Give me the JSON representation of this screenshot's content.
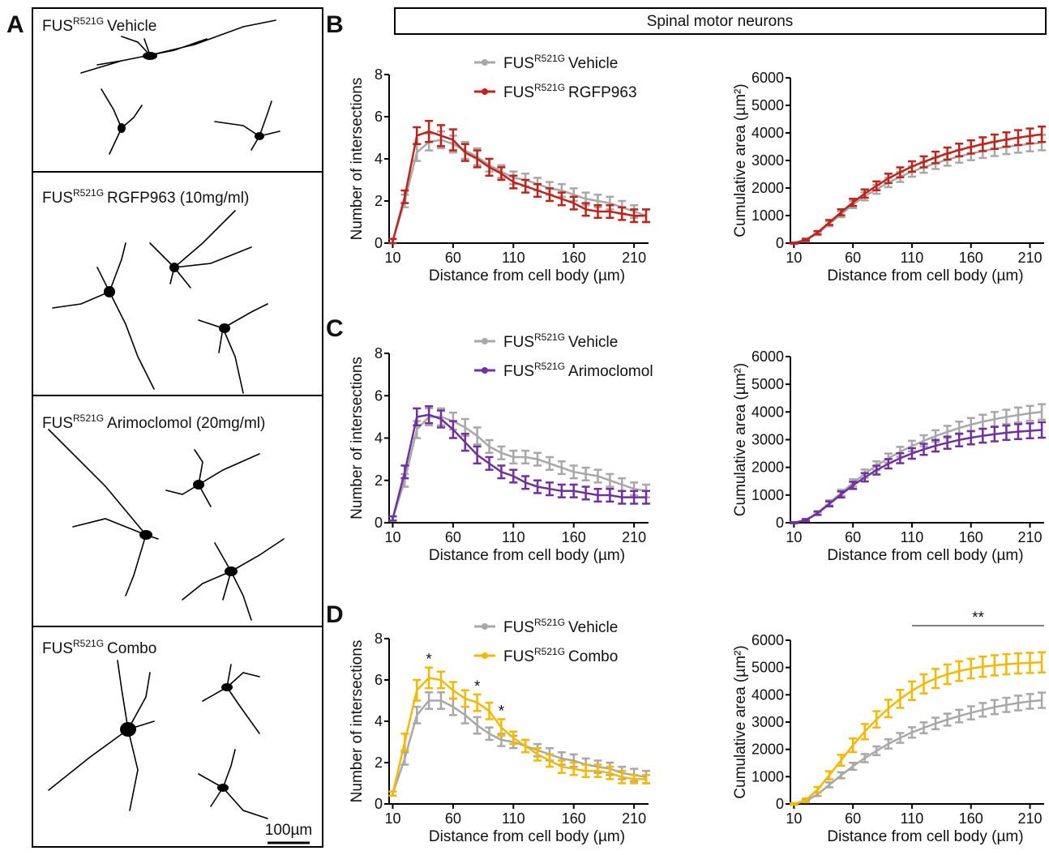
{
  "panel_labels": [
    "A",
    "B",
    "C",
    "D"
  ],
  "header": "Spinal motor neurons",
  "panel_a": {
    "images": [
      {
        "gene": "FUS",
        "allele": "R521G",
        "treatment": "Vehicle"
      },
      {
        "gene": "FUS",
        "allele": "R521G",
        "treatment": "RGFP963 (10mg/ml)"
      },
      {
        "gene": "FUS",
        "allele": "R521G",
        "treatment": "Arimoclomol (20mg/ml)"
      },
      {
        "gene": "FUS",
        "allele": "R521G",
        "treatment": "Combo"
      }
    ],
    "scale_bar": "100µm"
  },
  "chart_data": [
    {
      "type": "line",
      "xlabel": "Distance from cell body (µm)",
      "ylabel": "Number of intersections",
      "x": [
        10,
        20,
        30,
        40,
        50,
        60,
        70,
        80,
        90,
        100,
        110,
        120,
        130,
        140,
        150,
        160,
        170,
        180,
        190,
        200,
        210,
        220
      ],
      "xlim": [
        7,
        222
      ],
      "xticks": [
        10,
        60,
        110,
        160,
        210
      ],
      "ylim": [
        0,
        8
      ],
      "yticks": [
        0,
        2,
        4,
        6,
        8
      ],
      "legend": true,
      "series": [
        {
          "gene": "FUS",
          "allele": "R521G",
          "name": "Vehicle",
          "color": "#a8a8a8",
          "values": [
            0.1,
            2.0,
            4.3,
            4.8,
            4.9,
            4.7,
            4.4,
            4.1,
            3.7,
            3.4,
            3.1,
            3.0,
            2.8,
            2.6,
            2.5,
            2.3,
            2.1,
            2.0,
            1.9,
            1.7,
            1.5,
            1.3
          ],
          "errors": [
            0.1,
            0.3,
            0.4,
            0.4,
            0.4,
            0.4,
            0.4,
            0.4,
            0.3,
            0.3,
            0.3,
            0.3,
            0.3,
            0.3,
            0.3,
            0.3,
            0.3,
            0.3,
            0.3,
            0.3,
            0.3,
            0.3
          ]
        },
        {
          "gene": "FUS",
          "allele": "R521G",
          "name": "RGFP963",
          "color": "#c0231b",
          "values": [
            0.1,
            2.2,
            5.1,
            5.3,
            5.1,
            4.9,
            4.3,
            4.0,
            3.6,
            3.3,
            2.9,
            2.7,
            2.5,
            2.3,
            2.1,
            1.9,
            1.6,
            1.5,
            1.5,
            1.4,
            1.3,
            1.3
          ],
          "errors": [
            0.1,
            0.3,
            0.4,
            0.5,
            0.5,
            0.5,
            0.4,
            0.4,
            0.4,
            0.3,
            0.3,
            0.3,
            0.3,
            0.3,
            0.3,
            0.3,
            0.3,
            0.3,
            0.3,
            0.3,
            0.3,
            0.3
          ]
        }
      ]
    },
    {
      "type": "line",
      "xlabel": "Distance from cell body (µm)",
      "ylabel": "Cumulative area (µm²)",
      "x": [
        10,
        20,
        30,
        40,
        50,
        60,
        70,
        80,
        90,
        100,
        110,
        120,
        130,
        140,
        150,
        160,
        170,
        180,
        190,
        200,
        210,
        220
      ],
      "xlim": [
        7,
        222
      ],
      "xticks": [
        10,
        60,
        110,
        160,
        210
      ],
      "ylim": [
        0,
        6000
      ],
      "yticks": [
        0,
        1000,
        2000,
        3000,
        4000,
        5000,
        6000
      ],
      "legend": false,
      "series": [
        {
          "name": "Vehicle",
          "color": "#a8a8a8",
          "values": [
            0,
            100,
            350,
            700,
            1050,
            1400,
            1700,
            1950,
            2200,
            2400,
            2600,
            2750,
            2900,
            3030,
            3150,
            3250,
            3340,
            3420,
            3490,
            3550,
            3600,
            3650
          ],
          "errors": [
            20,
            40,
            60,
            90,
            110,
            130,
            150,
            160,
            170,
            180,
            190,
            200,
            210,
            220,
            230,
            240,
            250,
            260,
            260,
            270,
            270,
            280
          ]
        },
        {
          "name": "RGFP963",
          "color": "#c0231b",
          "values": [
            0,
            120,
            380,
            750,
            1120,
            1480,
            1800,
            2080,
            2350,
            2570,
            2780,
            2950,
            3110,
            3250,
            3380,
            3490,
            3590,
            3680,
            3760,
            3830,
            3890,
            3950
          ],
          "errors": [
            20,
            40,
            60,
            90,
            110,
            130,
            150,
            160,
            170,
            180,
            190,
            200,
            210,
            220,
            230,
            240,
            250,
            260,
            260,
            270,
            270,
            280
          ]
        }
      ]
    },
    {
      "type": "line",
      "xlabel": "Distance from cell body (µm)",
      "ylabel": "Number of intersections",
      "x": [
        10,
        20,
        30,
        40,
        50,
        60,
        70,
        80,
        90,
        100,
        110,
        120,
        130,
        140,
        150,
        160,
        170,
        180,
        190,
        200,
        210,
        220
      ],
      "xlim": [
        7,
        222
      ],
      "xticks": [
        10,
        60,
        110,
        160,
        210
      ],
      "ylim": [
        0,
        8
      ],
      "yticks": [
        0,
        2,
        4,
        6,
        8
      ],
      "legend": true,
      "series": [
        {
          "gene": "FUS",
          "allele": "R521G",
          "name": "Vehicle",
          "color": "#a8a8a8",
          "values": [
            0.2,
            2.0,
            4.4,
            5.0,
            5.0,
            4.8,
            4.5,
            4.1,
            3.6,
            3.3,
            3.1,
            3.1,
            3.0,
            2.8,
            2.6,
            2.4,
            2.3,
            2.2,
            2.0,
            1.8,
            1.6,
            1.5
          ],
          "errors": [
            0.1,
            0.3,
            0.4,
            0.4,
            0.4,
            0.4,
            0.4,
            0.4,
            0.3,
            0.3,
            0.3,
            0.3,
            0.3,
            0.3,
            0.3,
            0.3,
            0.3,
            0.3,
            0.3,
            0.3,
            0.3,
            0.3
          ]
        },
        {
          "gene": "FUS",
          "allele": "R521G",
          "name": "Arimoclomol",
          "color": "#7030a0",
          "values": [
            0.2,
            2.4,
            5.0,
            5.1,
            4.9,
            4.4,
            3.8,
            3.2,
            2.8,
            2.4,
            2.2,
            1.9,
            1.7,
            1.6,
            1.5,
            1.5,
            1.4,
            1.3,
            1.3,
            1.2,
            1.2,
            1.2
          ],
          "errors": [
            0.1,
            0.3,
            0.4,
            0.4,
            0.4,
            0.4,
            0.4,
            0.4,
            0.3,
            0.3,
            0.3,
            0.3,
            0.3,
            0.3,
            0.3,
            0.3,
            0.3,
            0.3,
            0.3,
            0.3,
            0.3,
            0.3
          ]
        }
      ]
    },
    {
      "type": "line",
      "xlabel": "Distance from cell body (µm)",
      "ylabel": "Cumulative area (µm²)",
      "x": [
        10,
        20,
        30,
        40,
        50,
        60,
        70,
        80,
        90,
        100,
        110,
        120,
        130,
        140,
        150,
        160,
        170,
        180,
        190,
        200,
        210,
        220
      ],
      "xlim": [
        7,
        222
      ],
      "xticks": [
        10,
        60,
        110,
        160,
        210
      ],
      "ylim": [
        0,
        6000
      ],
      "yticks": [
        0,
        1000,
        2000,
        3000,
        4000,
        5000,
        6000
      ],
      "legend": false,
      "series": [
        {
          "name": "Vehicle",
          "color": "#a8a8a8",
          "values": [
            0,
            100,
            360,
            720,
            1080,
            1440,
            1770,
            2060,
            2330,
            2560,
            2770,
            2960,
            3130,
            3280,
            3420,
            3540,
            3650,
            3740,
            3820,
            3890,
            3950,
            4000
          ],
          "errors": [
            20,
            40,
            60,
            90,
            110,
            130,
            150,
            160,
            170,
            180,
            190,
            200,
            210,
            220,
            230,
            240,
            250,
            260,
            260,
            270,
            270,
            280
          ]
        },
        {
          "name": "Arimoclomol",
          "color": "#7030a0",
          "values": [
            0,
            90,
            340,
            680,
            1020,
            1350,
            1640,
            1900,
            2130,
            2330,
            2500,
            2650,
            2780,
            2890,
            2990,
            3070,
            3140,
            3200,
            3250,
            3290,
            3320,
            3350
          ],
          "errors": [
            20,
            40,
            60,
            90,
            110,
            130,
            150,
            160,
            170,
            180,
            190,
            200,
            210,
            220,
            230,
            240,
            250,
            260,
            260,
            270,
            270,
            280
          ]
        }
      ]
    },
    {
      "type": "line",
      "xlabel": "Distance from cell body (µm)",
      "ylabel": "Number of intersections",
      "x": [
        10,
        20,
        30,
        40,
        50,
        60,
        70,
        80,
        90,
        100,
        110,
        120,
        130,
        140,
        150,
        160,
        170,
        180,
        190,
        200,
        210,
        220
      ],
      "xlim": [
        7,
        222
      ],
      "xticks": [
        10,
        60,
        110,
        160,
        210
      ],
      "ylim": [
        0,
        8
      ],
      "yticks": [
        0,
        2,
        4,
        6,
        8
      ],
      "legend": true,
      "annotations": [
        {
          "text": "*",
          "x": 40
        },
        {
          "text": "*",
          "x": 80
        },
        {
          "text": "*",
          "x": 100
        }
      ],
      "series": [
        {
          "gene": "FUS",
          "allele": "R521G",
          "name": "Vehicle",
          "color": "#a8a8a8",
          "values": [
            0.5,
            2.2,
            4.3,
            5.0,
            5.0,
            4.7,
            4.3,
            3.8,
            3.4,
            3.1,
            3.0,
            2.8,
            2.6,
            2.4,
            2.2,
            2.1,
            1.9,
            1.8,
            1.7,
            1.5,
            1.4,
            1.3
          ],
          "errors": [
            0.1,
            0.3,
            0.4,
            0.4,
            0.4,
            0.4,
            0.4,
            0.4,
            0.3,
            0.3,
            0.3,
            0.3,
            0.3,
            0.3,
            0.3,
            0.3,
            0.3,
            0.3,
            0.3,
            0.3,
            0.3,
            0.3
          ]
        },
        {
          "gene": "FUS",
          "allele": "R521G",
          "name": "Combo",
          "color": "#f5b800",
          "values": [
            0.5,
            3.0,
            5.5,
            6.1,
            6.0,
            5.5,
            5.1,
            4.9,
            4.5,
            3.7,
            3.2,
            2.8,
            2.4,
            2.1,
            1.8,
            1.7,
            1.6,
            1.6,
            1.5,
            1.3,
            1.2,
            1.2
          ],
          "errors": [
            0.1,
            0.4,
            0.5,
            0.5,
            0.4,
            0.4,
            0.4,
            0.4,
            0.4,
            0.4,
            0.3,
            0.3,
            0.3,
            0.3,
            0.3,
            0.3,
            0.3,
            0.3,
            0.3,
            0.3,
            0.2,
            0.2
          ]
        }
      ]
    },
    {
      "type": "line",
      "xlabel": "Distance from cell body (µm)",
      "ylabel": "Cumulative area (µm²)",
      "x": [
        10,
        20,
        30,
        40,
        50,
        60,
        70,
        80,
        90,
        100,
        110,
        120,
        130,
        140,
        150,
        160,
        170,
        180,
        190,
        200,
        210,
        220
      ],
      "xlim": [
        7,
        222
      ],
      "xticks": [
        10,
        60,
        110,
        160,
        210
      ],
      "ylim": [
        0,
        6000
      ],
      "yticks": [
        0,
        1000,
        2000,
        3000,
        4000,
        5000,
        6000
      ],
      "legend": false,
      "annotations": [
        {
          "text": "**",
          "x": [
            110,
            222
          ]
        }
      ],
      "series": [
        {
          "name": "Vehicle",
          "color": "#a8a8a8",
          "values": [
            0,
            100,
            350,
            700,
            1050,
            1380,
            1680,
            1950,
            2200,
            2420,
            2620,
            2790,
            2950,
            3090,
            3220,
            3340,
            3450,
            3550,
            3630,
            3700,
            3760,
            3800
          ],
          "errors": [
            20,
            40,
            60,
            90,
            110,
            130,
            150,
            160,
            170,
            180,
            190,
            200,
            210,
            220,
            230,
            240,
            250,
            260,
            260,
            270,
            270,
            280
          ]
        },
        {
          "name": "Combo",
          "color": "#f5b800",
          "values": [
            0,
            140,
            520,
            1050,
            1600,
            2150,
            2650,
            3100,
            3500,
            3850,
            4150,
            4400,
            4600,
            4750,
            4870,
            4960,
            5030,
            5080,
            5120,
            5150,
            5170,
            5190
          ],
          "errors": [
            30,
            60,
            100,
            150,
            200,
            250,
            280,
            300,
            320,
            330,
            340,
            350,
            350,
            360,
            360,
            360,
            370,
            370,
            370,
            370,
            370,
            370
          ]
        }
      ]
    }
  ]
}
